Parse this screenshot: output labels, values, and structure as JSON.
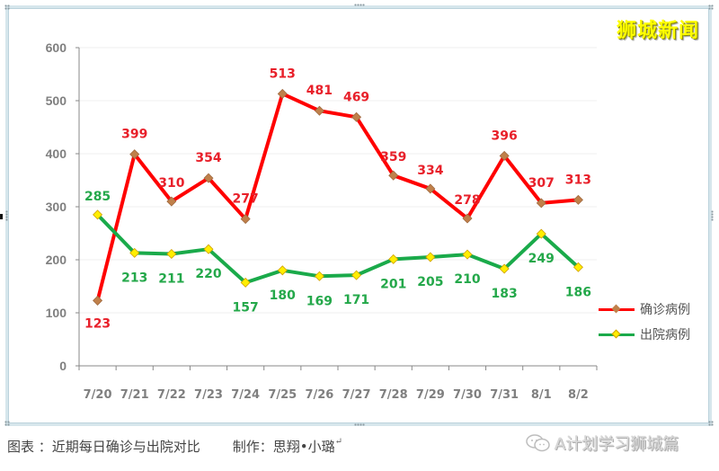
{
  "brand": {
    "text": "狮城新闻",
    "color": "#ffff00"
  },
  "caption": {
    "figure_label": "图表 ：近期每日确诊与出院对比",
    "author_label": "制作：思翔•小璐",
    "return_mark": "↵"
  },
  "watermark": {
    "icon": "wechat-icon",
    "text": "A计划学习狮城篇"
  },
  "legend": [
    {
      "label": "确诊病例",
      "line_color": "#ff0000",
      "marker_color": "#c0804a"
    },
    {
      "label": "出院病例",
      "line_color": "#1aaa4a",
      "marker_color": "#ffee00"
    }
  ],
  "chart_data": {
    "type": "line",
    "title": "",
    "xlabel": "",
    "ylabel": "",
    "categories": [
      "7/20",
      "7/21",
      "7/22",
      "7/23",
      "7/24",
      "7/25",
      "7/26",
      "7/27",
      "7/28",
      "7/29",
      "7/30",
      "7/31",
      "8/1",
      "8/2"
    ],
    "series": [
      {
        "name": "确诊病例",
        "color": "#ff0000",
        "marker": "diamond",
        "marker_color": "#c0804a",
        "label_color": "#e8202a",
        "values": [
          123,
          399,
          310,
          354,
          277,
          513,
          481,
          469,
          359,
          334,
          278,
          396,
          307,
          313
        ]
      },
      {
        "name": "出院病例",
        "color": "#1aaa4a",
        "marker": "diamond",
        "marker_color": "#ffee00",
        "label_color": "#24a84a",
        "values": [
          285,
          213,
          211,
          220,
          157,
          180,
          169,
          171,
          201,
          205,
          210,
          183,
          249,
          186
        ]
      }
    ],
    "yticks": [
      0,
      100,
      200,
      300,
      400,
      500,
      600
    ],
    "ylim": [
      0,
      600
    ],
    "grid": true,
    "legend_position": "right",
    "data_labels": true
  }
}
